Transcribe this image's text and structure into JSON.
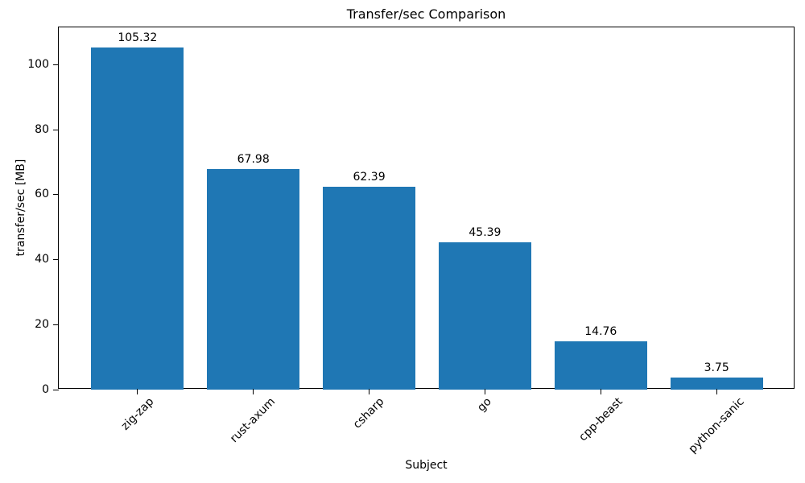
{
  "chart_data": {
    "type": "bar",
    "title": "Transfer/sec Comparison",
    "xlabel": "Subject",
    "ylabel": "transfer/sec [MB]",
    "categories": [
      "zig-zap",
      "rust-axum",
      "csharp",
      "go",
      "cpp-beast",
      "python-sanic"
    ],
    "values": [
      105.32,
      67.98,
      62.39,
      45.39,
      14.76,
      3.75
    ],
    "value_labels": [
      "105.32",
      "67.98",
      "62.39",
      "45.39",
      "14.76",
      "3.75"
    ],
    "yticks": [
      0,
      20,
      40,
      60,
      80,
      100
    ],
    "ylim": [
      0,
      111.5
    ],
    "bar_color": "#1f77b4",
    "grid": false,
    "legend": "none",
    "tick_label_rotation_deg": 45
  }
}
